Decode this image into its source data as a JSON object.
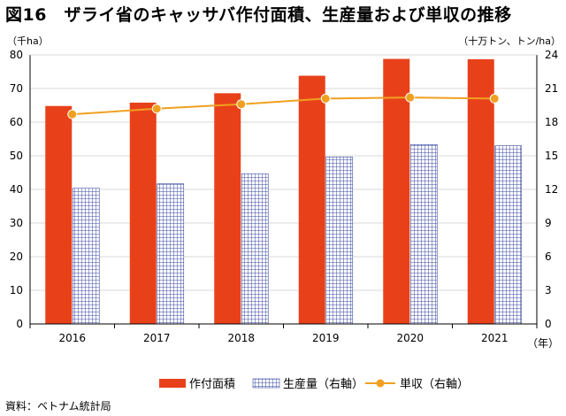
{
  "title": "図16　ザライ省のキャッサバ作付面積、生産量および単収の推移",
  "unit_left": "（千ha）",
  "unit_right": "（十万トン、トン/ha）",
  "source": "資料：ベトナム統計局",
  "colors": {
    "area": "#e8411a",
    "production_fill": "#ffffff",
    "production_grid": "#3a4aa0",
    "yield": "#f0a020",
    "grid": "#d9d9d9",
    "axis": "#000000"
  },
  "chart_data": {
    "type": "bar",
    "title": "",
    "categories": [
      "2016",
      "2017",
      "2018",
      "2019",
      "2020",
      "2021"
    ],
    "xlabel": "（年）",
    "left_axis": {
      "ylim": [
        0,
        80
      ],
      "ticks": [
        "0",
        "10",
        "20",
        "30",
        "40",
        "50",
        "60",
        "70",
        "80"
      ]
    },
    "right_axis": {
      "ylim": [
        0,
        24
      ],
      "ticks": [
        "0",
        "3",
        "6",
        "9",
        "12",
        "15",
        "18",
        "21",
        "24"
      ]
    },
    "series": [
      {
        "name": "作付面積",
        "type": "bar",
        "axis": "left",
        "values": [
          64.8,
          65.8,
          68.6,
          73.8,
          78.8,
          78.7
        ]
      },
      {
        "name": "生産量（右軸）",
        "type": "bar",
        "axis": "right",
        "values": [
          12.1,
          12.5,
          13.4,
          14.9,
          16.0,
          15.9
        ]
      },
      {
        "name": "単収（右軸）",
        "type": "line",
        "axis": "right",
        "values": [
          18.7,
          19.2,
          19.6,
          20.1,
          20.2,
          20.1
        ]
      }
    ],
    "grid": true,
    "legend": "bottom"
  }
}
